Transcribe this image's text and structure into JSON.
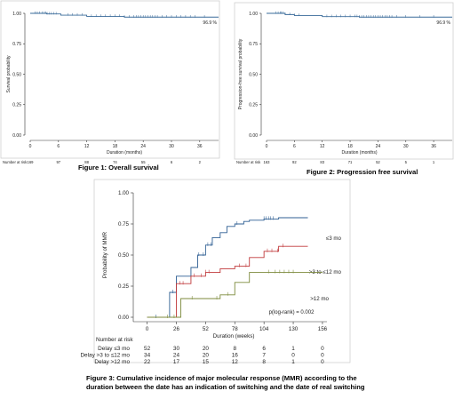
{
  "figures": [
    {
      "caption": "Figure 1: Overall survival"
    },
    {
      "caption": "Figure 2: Progression free survival"
    },
    {
      "caption": "Figure 3: Cumulative incidence of major molecular response (MMR) according to the duration between the date has an indication of switching and the date of real switching"
    }
  ],
  "chart_data": [
    {
      "type": "line",
      "title": "",
      "xlabel": "Duration (months)",
      "ylabel": "Survival probability",
      "xlim": [
        0,
        40
      ],
      "ylim": [
        0,
        1
      ],
      "xticks": [
        "0",
        "6",
        "12",
        "18",
        "24",
        "30",
        "36"
      ],
      "yticks": [
        "0.00",
        "0.25",
        "0.50",
        "0.75",
        "1.00"
      ],
      "annotation": "96.9 %",
      "series": [
        {
          "x": [
            0,
            1.5,
            3.5,
            6.5,
            12,
            20,
            40
          ],
          "y": [
            1.0,
            1.0,
            0.995,
            0.985,
            0.975,
            0.969,
            0.969
          ],
          "color": "#3a6b9a",
          "censor_x": [
            1,
            1.5,
            2,
            2.5,
            3,
            3.3,
            3.6,
            4,
            4.5,
            5,
            5.5,
            8,
            9,
            10,
            11,
            13,
            14,
            15,
            16,
            17,
            18,
            19,
            20,
            21,
            22,
            22.5,
            23,
            23.5,
            24,
            24.5,
            25,
            25.5,
            26,
            26.5,
            27,
            28,
            29,
            30,
            31,
            32,
            33,
            34,
            35,
            37
          ]
        }
      ],
      "risk_label": "Number at risk",
      "risk_numbers": [
        "169",
        "97",
        "88",
        "74",
        "55",
        "6",
        "2"
      ]
    },
    {
      "type": "line",
      "title": "",
      "xlabel": "Duration (months)",
      "ylabel": "Progression-free survival probability",
      "xlim": [
        0,
        40
      ],
      "ylim": [
        0,
        1
      ],
      "xticks": [
        "0",
        "6",
        "12",
        "18",
        "24",
        "30",
        "36"
      ],
      "yticks": [
        "0.00",
        "0.25",
        "0.50",
        "0.75",
        "1.00"
      ],
      "annotation": "96.9 %",
      "series": [
        {
          "x": [
            0,
            2.5,
            4,
            6,
            12,
            20,
            40
          ],
          "y": [
            1.0,
            1.0,
            0.99,
            0.982,
            0.973,
            0.969,
            0.969
          ],
          "color": "#3a6b9a",
          "censor_x": [
            2,
            2.5,
            3,
            3.2,
            3.5,
            4,
            5,
            6,
            7,
            13,
            14,
            15,
            16,
            17,
            18,
            19,
            19.5,
            20,
            20.5,
            21,
            21.5,
            22,
            22.5,
            23,
            23.5,
            24,
            24.5,
            25,
            25.5,
            26,
            26.5,
            27,
            28,
            30,
            33,
            36
          ]
        }
      ],
      "risk_label": "Number at risk",
      "risk_numbers": [
        "163",
        "92",
        "83",
        "71",
        "52",
        "5",
        "1"
      ]
    },
    {
      "type": "line",
      "title": "",
      "xlabel": "Duration (weeks)",
      "ylabel": "Probability of MMR",
      "xlim": [
        -6,
        160
      ],
      "ylim": [
        0,
        1
      ],
      "xticks": [
        "0",
        "26",
        "52",
        "78",
        "104",
        "130",
        "156"
      ],
      "yticks": [
        "0.00",
        "0.25",
        "0.50",
        "0.75",
        "1.00"
      ],
      "annotation": "p(log-rank) = 0.002",
      "series": [
        {
          "name": "≤3 mo",
          "color": "#2f5f93",
          "x": [
            0,
            14,
            20,
            26,
            39,
            45,
            52,
            58,
            65,
            71,
            78,
            86,
            91,
            104,
            117,
            130,
            143
          ],
          "y": [
            0,
            0,
            0.2,
            0.33,
            0.4,
            0.5,
            0.58,
            0.64,
            0.68,
            0.73,
            0.75,
            0.77,
            0.78,
            0.79,
            0.8,
            0.8,
            0.8
          ],
          "censor_x": [
            8,
            23,
            46,
            50,
            54,
            57,
            80,
            104,
            106,
            108,
            110,
            112
          ]
        },
        {
          "name": ">3 to ≤12 mo",
          "color": "#c0393b",
          "x": [
            0,
            22,
            26,
            39,
            52,
            65,
            78,
            91,
            104,
            117,
            130,
            143
          ],
          "y": [
            0,
            0,
            0.27,
            0.33,
            0.36,
            0.39,
            0.41,
            0.48,
            0.53,
            0.57,
            0.57,
            0.57
          ],
          "censor_x": [
            29,
            32,
            42,
            48,
            52,
            55,
            82,
            88,
            107,
            111,
            116,
            121
          ]
        },
        {
          "name": ">12 mo",
          "color": "#7c8a3b",
          "x": [
            0,
            26,
            30,
            52,
            65,
            78,
            91,
            104,
            117,
            130,
            156
          ],
          "y": [
            0,
            0,
            0.15,
            0.15,
            0.18,
            0.28,
            0.36,
            0.36,
            0.36,
            0.36,
            0.36
          ],
          "censor_x": [
            18,
            24,
            40,
            62,
            72,
            108,
            114,
            118,
            122,
            126,
            130
          ]
        }
      ],
      "risk_label": "Number at risk",
      "risk_rows": [
        {
          "label": "Delay ≤3 mo",
          "values": [
            "52",
            "30",
            "20",
            "8",
            "6",
            "1",
            "0"
          ]
        },
        {
          "label": "Delay >3 to ≤12 mo",
          "values": [
            "34",
            "24",
            "20",
            "16",
            "7",
            "0",
            "0"
          ]
        },
        {
          "label": "Delay >12 mo",
          "values": [
            "22",
            "17",
            "15",
            "12",
            "8",
            "1",
            "0"
          ]
        }
      ]
    }
  ]
}
